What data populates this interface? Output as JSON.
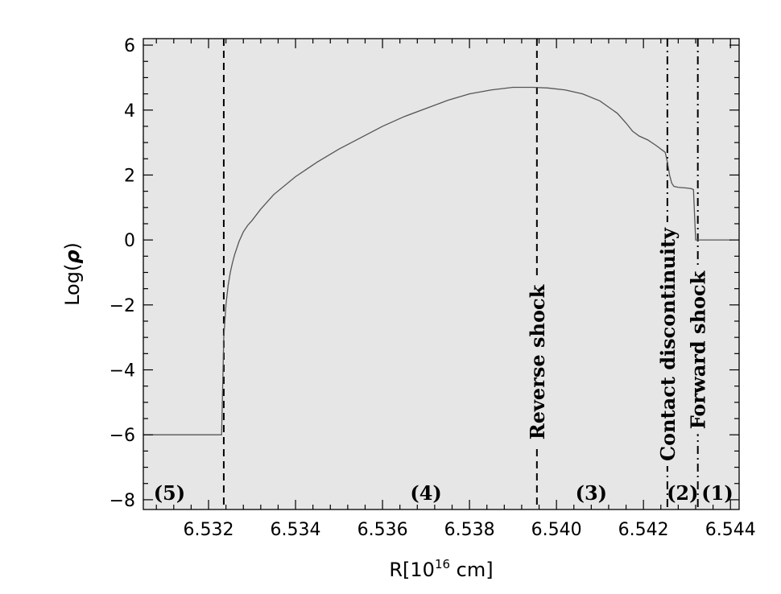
{
  "chart_data": {
    "type": "line",
    "title": "",
    "xlabel_main": "R[10",
    "xlabel_sup": "16",
    "xlabel_unit": " cm]",
    "ylabel_main": "Log(",
    "ylabel_symbol": "ρ",
    "ylabel_close": ")",
    "xlim": [
      6.5305,
      6.5442
    ],
    "ylim": [
      -8.3,
      6.2
    ],
    "grid": false,
    "background_color": "#e6e6e6",
    "line_color": "#555555",
    "x_ticks": [
      {
        "value": 6.532,
        "label": "6.532"
      },
      {
        "value": 6.534,
        "label": "6.534"
      },
      {
        "value": 6.536,
        "label": "6.536"
      },
      {
        "value": 6.538,
        "label": "6.538"
      },
      {
        "value": 6.54,
        "label": "6.540"
      },
      {
        "value": 6.542,
        "label": "6.542"
      },
      {
        "value": 6.544,
        "label": "6.544"
      }
    ],
    "y_ticks": [
      {
        "value": -8,
        "label": "−8"
      },
      {
        "value": -6,
        "label": "−6"
      },
      {
        "value": -4,
        "label": "−4"
      },
      {
        "value": -2,
        "label": "−2"
      },
      {
        "value": 0,
        "label": "0"
      },
      {
        "value": 2,
        "label": "2"
      },
      {
        "value": 4,
        "label": "4"
      },
      {
        "value": 6,
        "label": "6"
      }
    ],
    "series": [
      {
        "x": [
          6.5305,
          6.5323,
          6.53235,
          6.5324,
          6.53245,
          6.5325,
          6.53255,
          6.5326,
          6.5327,
          6.5328,
          6.5329,
          6.533,
          6.5332,
          6.5335,
          6.534,
          6.5345,
          6.535,
          6.5355,
          6.536,
          6.5365,
          6.537,
          6.5375,
          6.538,
          6.5385,
          6.539,
          6.53945,
          6.5398,
          6.5402,
          6.5406,
          6.541,
          6.5414,
          6.5416,
          6.54175,
          6.5418,
          6.5419,
          6.5421,
          6.5423,
          6.54245,
          6.5425,
          6.54255,
          6.5426,
          6.54265,
          6.5427,
          6.5428,
          6.543,
          6.5431,
          6.54315,
          6.5432,
          6.5433,
          6.5436,
          6.544
        ],
        "y": [
          -6.0,
          -6.0,
          -3.0,
          -2.0,
          -1.4,
          -1.0,
          -0.7,
          -0.45,
          -0.05,
          0.25,
          0.45,
          0.6,
          0.95,
          1.4,
          1.95,
          2.4,
          2.8,
          3.15,
          3.5,
          3.8,
          4.05,
          4.3,
          4.5,
          4.62,
          4.7,
          4.7,
          4.68,
          4.62,
          4.5,
          4.28,
          3.9,
          3.6,
          3.35,
          3.3,
          3.2,
          3.08,
          2.9,
          2.75,
          2.7,
          2.4,
          2.0,
          1.75,
          1.65,
          1.62,
          1.6,
          1.58,
          1.55,
          0.0,
          0.0,
          0.0,
          0.0
        ]
      }
    ],
    "vlines": [
      {
        "x": 6.53235,
        "style": "dashed",
        "label": ""
      },
      {
        "x": 6.53955,
        "style": "dashed",
        "label": "Reverse shock"
      },
      {
        "x": 6.54255,
        "style": "dashdot",
        "label": "Contact discontinuity"
      },
      {
        "x": 6.54325,
        "style": "dashdot",
        "label": "Forward shock"
      }
    ],
    "regions": [
      {
        "label": "(5)",
        "x": 6.5311
      },
      {
        "label": "(4)",
        "x": 6.537
      },
      {
        "label": "(3)",
        "x": 6.5408
      },
      {
        "label": "(2)",
        "x": 6.5429
      },
      {
        "label": "(1)",
        "x": 6.5437
      }
    ]
  }
}
